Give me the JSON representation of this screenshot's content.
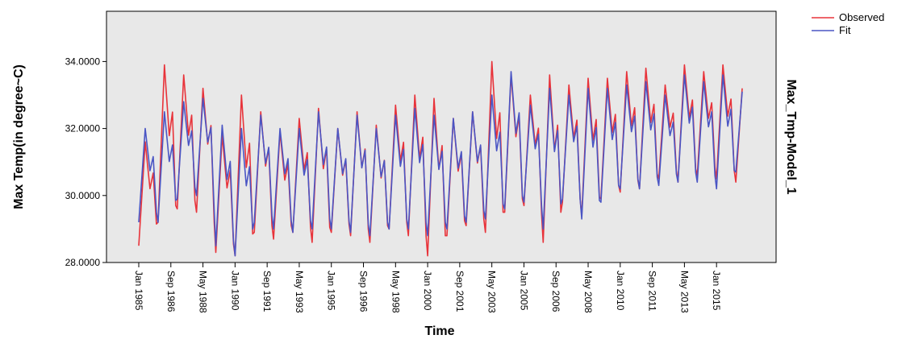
{
  "chart_data": {
    "type": "line",
    "xlabel": "Time",
    "ylabel": "Max Temp(in degree~C)",
    "right_label": "Max_Tmp-Model_1",
    "x_start": "Jan 1985",
    "x_end": "Jun 2016",
    "ylim": [
      28.0,
      35.5
    ],
    "yticks": [
      {
        "value": 28.0,
        "label": "28.0000"
      },
      {
        "value": 30.0,
        "label": "30.0000"
      },
      {
        "value": 32.0,
        "label": "32.0000"
      },
      {
        "value": 34.0,
        "label": "34.0000"
      }
    ],
    "xticks": [
      "Jan 1985",
      "Sep 1986",
      "May 1988",
      "Jan 1990",
      "Sep 1991",
      "May 1993",
      "Jan 1995",
      "Sep 1996",
      "May 1998",
      "Jan 2000",
      "Sep 2001",
      "May 2003",
      "Jan 2005",
      "Sep 2006",
      "May 2008",
      "Jan 2010",
      "Sep 2011",
      "May 2013",
      "Jan 2015"
    ],
    "legend_position": "top-right",
    "grid": false,
    "background": "#e8e8e8",
    "series": [
      {
        "name": "Observed",
        "color": "#e8333a",
        "annual": [
          {
            "year": 1985,
            "low": 28.5,
            "high": 31.6
          },
          {
            "year": 1986,
            "low": 29.2,
            "high": 33.9
          },
          {
            "year": 1987,
            "low": 29.6,
            "high": 33.6
          },
          {
            "year": 1988,
            "low": 29.5,
            "high": 33.2
          },
          {
            "year": 1989,
            "low": 28.3,
            "high": 31.8
          },
          {
            "year": 1990,
            "low": 28.2,
            "high": 33.0
          },
          {
            "year": 1991,
            "low": 28.9,
            "high": 32.5
          },
          {
            "year": 1992,
            "low": 28.7,
            "high": 31.9
          },
          {
            "year": 1993,
            "low": 28.9,
            "high": 32.3
          },
          {
            "year": 1994,
            "low": 28.6,
            "high": 32.6
          },
          {
            "year": 1995,
            "low": 28.9,
            "high": 32.0
          },
          {
            "year": 1996,
            "low": 28.8,
            "high": 32.5
          },
          {
            "year": 1997,
            "low": 28.6,
            "high": 32.1
          },
          {
            "year": 1998,
            "low": 29.0,
            "high": 32.7
          },
          {
            "year": 1999,
            "low": 28.8,
            "high": 33.0
          },
          {
            "year": 2000,
            "low": 28.2,
            "high": 32.9
          },
          {
            "year": 2001,
            "low": 28.8,
            "high": 32.3
          },
          {
            "year": 2002,
            "low": 29.1,
            "high": 32.5
          },
          {
            "year": 2003,
            "low": 28.9,
            "high": 34.0
          },
          {
            "year": 2004,
            "low": 29.5,
            "high": 33.6
          },
          {
            "year": 2005,
            "low": 29.7,
            "high": 33.0
          },
          {
            "year": 2006,
            "low": 28.6,
            "high": 33.6
          },
          {
            "year": 2007,
            "low": 29.8,
            "high": 33.3
          },
          {
            "year": 2008,
            "low": 29.4,
            "high": 33.5
          },
          {
            "year": 2009,
            "low": 29.9,
            "high": 33.5
          },
          {
            "year": 2010,
            "low": 30.1,
            "high": 33.7
          },
          {
            "year": 2011,
            "low": 30.2,
            "high": 33.8
          },
          {
            "year": 2012,
            "low": 30.5,
            "high": 33.3
          },
          {
            "year": 2013,
            "low": 30.4,
            "high": 33.9
          },
          {
            "year": 2014,
            "low": 30.6,
            "high": 33.7
          },
          {
            "year": 2015,
            "low": 30.5,
            "high": 33.9
          },
          {
            "year": 2016,
            "low": 30.4,
            "high": 33.2
          }
        ]
      },
      {
        "name": "Fit",
        "color": "#4a55c4",
        "annual": [
          {
            "year": 1985,
            "low": 29.2,
            "high": 32.0
          },
          {
            "year": 1986,
            "low": 29.2,
            "high": 32.5
          },
          {
            "year": 1987,
            "low": 29.9,
            "high": 32.8
          },
          {
            "year": 1988,
            "low": 30.0,
            "high": 32.9
          },
          {
            "year": 1989,
            "low": 28.5,
            "high": 32.1
          },
          {
            "year": 1990,
            "low": 28.2,
            "high": 32.0
          },
          {
            "year": 1991,
            "low": 29.2,
            "high": 32.4
          },
          {
            "year": 1992,
            "low": 29.0,
            "high": 32.0
          },
          {
            "year": 1993,
            "low": 28.9,
            "high": 32.0
          },
          {
            "year": 1994,
            "low": 29.0,
            "high": 32.5
          },
          {
            "year": 1995,
            "low": 29.0,
            "high": 32.0
          },
          {
            "year": 1996,
            "low": 28.9,
            "high": 32.4
          },
          {
            "year": 1997,
            "low": 28.8,
            "high": 32.0
          },
          {
            "year": 1998,
            "low": 29.0,
            "high": 32.4
          },
          {
            "year": 1999,
            "low": 29.0,
            "high": 32.6
          },
          {
            "year": 2000,
            "low": 28.8,
            "high": 32.4
          },
          {
            "year": 2001,
            "low": 29.0,
            "high": 32.3
          },
          {
            "year": 2002,
            "low": 29.2,
            "high": 32.5
          },
          {
            "year": 2003,
            "low": 29.3,
            "high": 33.0
          },
          {
            "year": 2004,
            "low": 29.6,
            "high": 33.7
          },
          {
            "year": 2005,
            "low": 29.8,
            "high": 32.7
          },
          {
            "year": 2006,
            "low": 29.0,
            "high": 33.2
          },
          {
            "year": 2007,
            "low": 29.9,
            "high": 33.0
          },
          {
            "year": 2008,
            "low": 29.3,
            "high": 33.2
          },
          {
            "year": 2009,
            "low": 29.8,
            "high": 33.2
          },
          {
            "year": 2010,
            "low": 30.2,
            "high": 33.3
          },
          {
            "year": 2011,
            "low": 30.2,
            "high": 33.4
          },
          {
            "year": 2012,
            "low": 30.3,
            "high": 33.0
          },
          {
            "year": 2013,
            "low": 30.4,
            "high": 33.6
          },
          {
            "year": 2014,
            "low": 30.4,
            "high": 33.4
          },
          {
            "year": 2015,
            "low": 30.2,
            "high": 33.6
          },
          {
            "year": 2016,
            "low": 30.7,
            "high": 33.1
          }
        ]
      }
    ]
  }
}
